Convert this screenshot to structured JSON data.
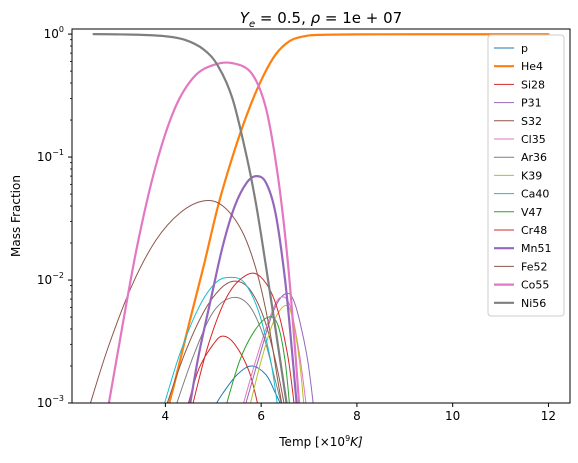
{
  "chart_data": {
    "type": "line",
    "title": "Y_e = 0.5, ρ = 1e+07",
    "title_parts": {
      "Y": "Y",
      "e": "e",
      "rest": " = 0.5, ",
      "rho": "ρ",
      "eq": " = 1e + 07"
    },
    "xlabel": "Temp [×10⁹K]",
    "xlabel_parts": {
      "pre": "Temp [×10",
      "sup": "9",
      "post": "K]"
    },
    "ylabel": "Mass Fraction",
    "xlim": [
      2.05,
      12.45
    ],
    "ylim": [
      0.001,
      1.1
    ],
    "yscale": "log",
    "grid": false,
    "legend_position": "top-right",
    "x_ticks": [
      "4",
      "6",
      "8",
      "10",
      "12"
    ],
    "y_ticks": [
      "10^-3",
      "10^-2",
      "10^-1",
      "10^0"
    ],
    "y_tick_parts": [
      {
        "base": "10",
        "exp": "−3"
      },
      {
        "base": "10",
        "exp": "−2"
      },
      {
        "base": "10",
        "exp": "−1"
      },
      {
        "base": "10",
        "exp": "0"
      }
    ],
    "series": [
      {
        "name": "p",
        "color": "#1f77b4",
        "width": 1.0,
        "points": [
          [
            5.0,
            0.0009
          ],
          [
            5.2,
            0.0012
          ],
          [
            5.5,
            0.0017
          ],
          [
            5.8,
            0.002
          ],
          [
            6.1,
            0.0017
          ],
          [
            6.3,
            0.0012
          ],
          [
            6.45,
            0.0009
          ]
        ]
      },
      {
        "name": "He4",
        "color": "#ff7f0e",
        "width": 2.2,
        "points": [
          [
            4.05,
            0.0009
          ],
          [
            4.2,
            0.0015
          ],
          [
            4.5,
            0.0045
          ],
          [
            4.8,
            0.013
          ],
          [
            5.1,
            0.04
          ],
          [
            5.4,
            0.1
          ],
          [
            5.7,
            0.22
          ],
          [
            6.0,
            0.42
          ],
          [
            6.3,
            0.68
          ],
          [
            6.6,
            0.88
          ],
          [
            6.9,
            0.96
          ],
          [
            7.2,
            0.985
          ],
          [
            8.0,
            0.995
          ],
          [
            10.0,
            0.997
          ],
          [
            12.0,
            0.998
          ]
        ]
      },
      {
        "name": "Si28",
        "color": "#d62728",
        "width": 1.0,
        "points": [
          [
            4.45,
            0.0009
          ],
          [
            4.7,
            0.0019
          ],
          [
            5.0,
            0.003
          ],
          [
            5.2,
            0.0035
          ],
          [
            5.45,
            0.003
          ],
          [
            5.75,
            0.0018
          ],
          [
            5.95,
            0.0009
          ]
        ]
      },
      {
        "name": "P31",
        "color": "#9467bd",
        "width": 1.0,
        "points": [
          [
            5.65,
            0.0009
          ],
          [
            5.95,
            0.0023
          ],
          [
            6.25,
            0.0055
          ],
          [
            6.5,
            0.0077
          ],
          [
            6.7,
            0.0065
          ],
          [
            6.95,
            0.0025
          ],
          [
            7.1,
            0.0009
          ]
        ]
      },
      {
        "name": "S32",
        "color": "#8c564b",
        "width": 1.0,
        "points": [
          [
            4.0,
            0.0009
          ],
          [
            4.4,
            0.0025
          ],
          [
            4.8,
            0.0055
          ],
          [
            5.15,
            0.0085
          ],
          [
            5.45,
            0.0098
          ],
          [
            5.75,
            0.0085
          ],
          [
            6.05,
            0.005
          ],
          [
            6.3,
            0.0022
          ],
          [
            6.5,
            0.0009
          ]
        ]
      },
      {
        "name": "Cl35",
        "color": "#e377c2",
        "width": 1.0,
        "points": [
          [
            5.6,
            0.0009
          ],
          [
            5.9,
            0.0023
          ],
          [
            6.2,
            0.0052
          ],
          [
            6.4,
            0.0072
          ],
          [
            6.6,
            0.0062
          ],
          [
            6.8,
            0.0025
          ],
          [
            6.95,
            0.0009
          ]
        ]
      },
      {
        "name": "Ar36",
        "color": "#7f7f7f",
        "width": 1.0,
        "points": [
          [
            4.2,
            0.0009
          ],
          [
            4.6,
            0.0025
          ],
          [
            5.0,
            0.0055
          ],
          [
            5.4,
            0.0072
          ],
          [
            5.75,
            0.0062
          ],
          [
            6.05,
            0.0035
          ],
          [
            6.3,
            0.0015
          ],
          [
            6.45,
            0.0009
          ]
        ]
      },
      {
        "name": "K39",
        "color": "#bcbd22",
        "width": 1.0,
        "points": [
          [
            5.75,
            0.0009
          ],
          [
            6.0,
            0.0022
          ],
          [
            6.25,
            0.0045
          ],
          [
            6.5,
            0.0062
          ],
          [
            6.65,
            0.005
          ],
          [
            6.8,
            0.0022
          ],
          [
            6.9,
            0.0009
          ]
        ]
      },
      {
        "name": "Ca40",
        "color": "#17becf",
        "width": 1.0,
        "points": [
          [
            3.95,
            0.0009
          ],
          [
            4.3,
            0.0025
          ],
          [
            4.7,
            0.006
          ],
          [
            5.05,
            0.0095
          ],
          [
            5.35,
            0.0105
          ],
          [
            5.65,
            0.0095
          ],
          [
            5.95,
            0.0055
          ],
          [
            6.2,
            0.0022
          ],
          [
            6.35,
            0.0009
          ]
        ]
      },
      {
        "name": "V47",
        "color": "#2ca02c",
        "width": 1.0,
        "points": [
          [
            5.25,
            0.0009
          ],
          [
            5.55,
            0.0022
          ],
          [
            5.85,
            0.0038
          ],
          [
            6.15,
            0.005
          ],
          [
            6.35,
            0.0043
          ],
          [
            6.5,
            0.0022
          ],
          [
            6.6,
            0.0009
          ]
        ]
      },
      {
        "name": "Cr48",
        "color": "#d62728",
        "width": 1.0,
        "points": [
          [
            4.55,
            0.0009
          ],
          [
            4.9,
            0.003
          ],
          [
            5.3,
            0.0075
          ],
          [
            5.7,
            0.011
          ],
          [
            6.0,
            0.0105
          ],
          [
            6.3,
            0.0065
          ],
          [
            6.55,
            0.0025
          ],
          [
            6.7,
            0.0009
          ]
        ]
      },
      {
        "name": "Mn51",
        "color": "#9467bd",
        "width": 2.2,
        "points": [
          [
            4.5,
            0.0009
          ],
          [
            4.7,
            0.0025
          ],
          [
            4.95,
            0.007
          ],
          [
            5.2,
            0.019
          ],
          [
            5.45,
            0.04
          ],
          [
            5.7,
            0.062
          ],
          [
            5.9,
            0.07
          ],
          [
            6.1,
            0.062
          ],
          [
            6.3,
            0.035
          ],
          [
            6.5,
            0.01
          ],
          [
            6.65,
            0.0025
          ],
          [
            6.75,
            0.0009
          ]
        ]
      },
      {
        "name": "Fe52",
        "color": "#8c564b",
        "width": 1.0,
        "points": [
          [
            2.4,
            0.0009
          ],
          [
            2.8,
            0.0028
          ],
          [
            3.3,
            0.009
          ],
          [
            3.8,
            0.021
          ],
          [
            4.3,
            0.035
          ],
          [
            4.8,
            0.044
          ],
          [
            5.2,
            0.04
          ],
          [
            5.6,
            0.025
          ],
          [
            5.9,
            0.012
          ],
          [
            6.15,
            0.0045
          ],
          [
            6.35,
            0.0015
          ],
          [
            6.45,
            0.0009
          ]
        ]
      },
      {
        "name": "Co55",
        "color": "#e377c2",
        "width": 2.2,
        "points": [
          [
            2.8,
            0.0009
          ],
          [
            3.0,
            0.0025
          ],
          [
            3.4,
            0.018
          ],
          [
            3.8,
            0.085
          ],
          [
            4.2,
            0.25
          ],
          [
            4.6,
            0.45
          ],
          [
            5.0,
            0.56
          ],
          [
            5.4,
            0.58
          ],
          [
            5.8,
            0.48
          ],
          [
            6.1,
            0.25
          ],
          [
            6.35,
            0.07
          ],
          [
            6.55,
            0.015
          ],
          [
            6.7,
            0.003
          ],
          [
            6.8,
            0.0009
          ]
        ]
      },
      {
        "name": "Ni56",
        "color": "#7f7f7f",
        "width": 2.2,
        "points": [
          [
            2.5,
            1.0
          ],
          [
            3.0,
            0.995
          ],
          [
            3.5,
            0.985
          ],
          [
            4.0,
            0.96
          ],
          [
            4.4,
            0.9
          ],
          [
            4.8,
            0.75
          ],
          [
            5.1,
            0.55
          ],
          [
            5.4,
            0.3
          ],
          [
            5.7,
            0.1
          ],
          [
            5.9,
            0.04
          ],
          [
            6.1,
            0.013
          ],
          [
            6.3,
            0.004
          ],
          [
            6.5,
            0.0012
          ],
          [
            6.55,
            0.0009
          ]
        ]
      }
    ]
  }
}
